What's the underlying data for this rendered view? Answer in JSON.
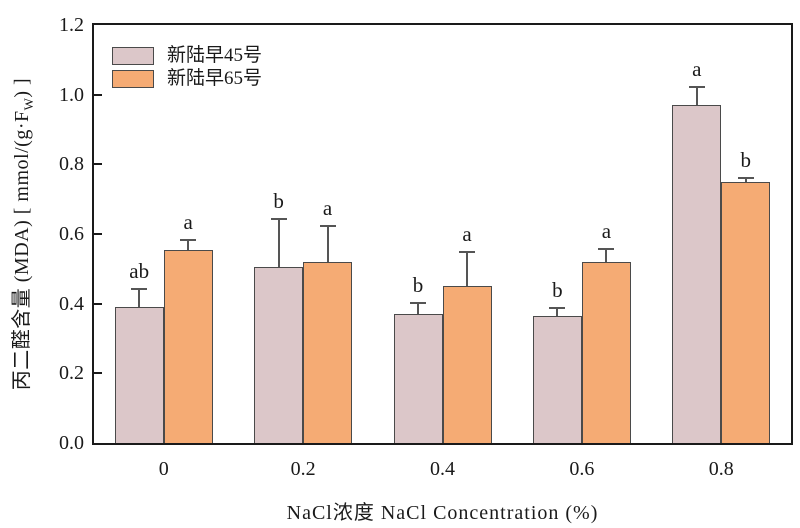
{
  "chart_data": {
    "type": "bar",
    "categories": [
      "0",
      "0.2",
      "0.4",
      "0.6",
      "0.8"
    ],
    "xlabel": "NaCl浓度 NaCl Concentration (%)",
    "ylabel": "丙二醛含量 (MDA) [ mmol/(g·Fw) ]",
    "ylabel_parts": {
      "name": "丙二醛含量 (MDA) ",
      "unit_open": "[ mmol/(g·F",
      "unit_sub": "W",
      "unit_close": ") ]"
    },
    "ylim": [
      0,
      1.2
    ],
    "yticks": [
      "0.0",
      "0.2",
      "0.4",
      "0.6",
      "0.8",
      "1.0",
      "1.2"
    ],
    "grid": false,
    "legend_position": "top-left",
    "series": [
      {
        "name": "新陆早45号",
        "color": "#dcc7c9",
        "values": [
          0.39,
          0.505,
          0.37,
          0.365,
          0.97
        ],
        "errors_up": [
          0.055,
          0.14,
          0.035,
          0.025,
          0.055
        ],
        "sig_letters": [
          "ab",
          "b",
          "b",
          "b",
          "a"
        ]
      },
      {
        "name": "新陆早65号",
        "color": "#f5ab74",
        "values": [
          0.555,
          0.52,
          0.45,
          0.52,
          0.75
        ],
        "errors_up": [
          0.03,
          0.105,
          0.1,
          0.04,
          0.015
        ],
        "sig_letters": [
          "a",
          "a",
          "a",
          "a",
          "b"
        ]
      }
    ],
    "colors": {
      "axis": "#1a1a1a",
      "error_bar": "#555555",
      "bar_border": "#4a4a4a"
    }
  }
}
